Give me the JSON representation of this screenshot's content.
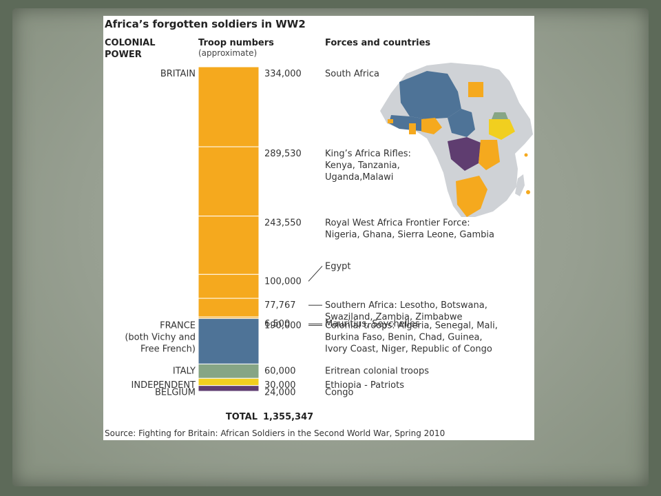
{
  "chart_data": {
    "type": "bar",
    "title": "Africa’s forgotten soldiers in WW2",
    "columns": {
      "power": [
        "COLONIAL",
        "POWER"
      ],
      "troops": "Troop numbers",
      "troops_note": "(approximate)",
      "forces": "Forces and countries"
    },
    "powers": [
      {
        "lines": [
          "BRITAIN"
        ]
      },
      {
        "lines": [
          "FRANCE",
          "(both Vichy and",
          "Free French)"
        ]
      },
      {
        "lines": [
          "ITALY"
        ]
      },
      {
        "lines": [
          "INDEPENDENT"
        ]
      },
      {
        "lines": [
          "BELGIUM"
        ]
      }
    ],
    "segments": [
      {
        "value": 334000,
        "label": "334,000",
        "power": "BRITAIN",
        "color": "#f5a91e",
        "forces": [
          "South Africa"
        ]
      },
      {
        "value": 289530,
        "label": "289,530",
        "power": "BRITAIN",
        "color": "#f5a91e",
        "forces": [
          "King’s Africa Rifles:",
          "Kenya, Tanzania,",
          "Uganda,Malawi"
        ]
      },
      {
        "value": 243550,
        "label": "243,550",
        "power": "BRITAIN",
        "color": "#f5a91e",
        "forces": [
          "Royal West Africa Frontier Force:",
          "Nigeria, Ghana, Sierra Leone, Gambia"
        ]
      },
      {
        "value": 100000,
        "label": "100,000",
        "power": "BRITAIN",
        "color": "#f5a91e",
        "forces": [
          "Egypt"
        ]
      },
      {
        "value": 77767,
        "label": "77,767",
        "power": "BRITAIN",
        "color": "#f5a91e",
        "forces": [
          "Southern Africa: Lesotho, Botswana,",
          "Swaziland, Zambia, Zimbabwe"
        ]
      },
      {
        "value": 6500,
        "label": "6,500",
        "power": "BRITAIN",
        "color": "#f5a91e",
        "forces": [
          "Mauritius, Seychelles"
        ]
      },
      {
        "value": 190000,
        "label": "190,000",
        "power": "FRANCE",
        "color": "#4e7397",
        "forces": [
          "Colonial troops: Algeria, Senegal, Mali,",
          "Burkina Faso, Benin, Chad, Guinea,",
          "Ivory Coast, Niger, Republic of Congo"
        ]
      },
      {
        "value": 60000,
        "label": "60,000",
        "power": "ITALY",
        "color": "#86a585",
        "forces": [
          "Eritrean colonial troops"
        ]
      },
      {
        "value": 30000,
        "label": "30,000",
        "power": "INDEPENDENT",
        "color": "#f1cf1f",
        "forces": [
          "Ethiopia - Patriots"
        ]
      },
      {
        "value": 24000,
        "label": "24,000",
        "power": "BELGIUM",
        "color": "#5f3d70",
        "forces": [
          "Congo"
        ]
      }
    ],
    "total_label": "TOTAL",
    "total_value": "1,355,347",
    "source": "Source: Fighting for Britain: African Soldiers in the Second World War, Spring 2010"
  }
}
